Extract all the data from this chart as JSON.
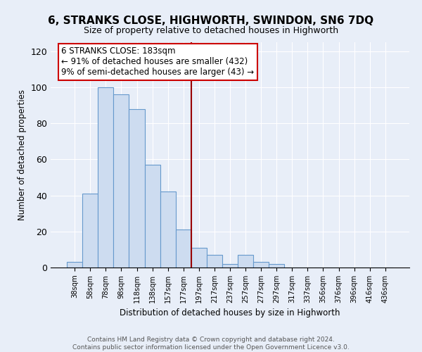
{
  "title": "6, STRANKS CLOSE, HIGHWORTH, SWINDON, SN6 7DQ",
  "subtitle": "Size of property relative to detached houses in Highworth",
  "xlabel": "Distribution of detached houses by size in Highworth",
  "ylabel": "Number of detached properties",
  "bar_labels": [
    "38sqm",
    "58sqm",
    "78sqm",
    "98sqm",
    "118sqm",
    "138sqm",
    "157sqm",
    "177sqm",
    "197sqm",
    "217sqm",
    "237sqm",
    "257sqm",
    "277sqm",
    "297sqm",
    "317sqm",
    "337sqm",
    "356sqm",
    "376sqm",
    "396sqm",
    "416sqm",
    "436sqm"
  ],
  "bar_values": [
    3,
    41,
    100,
    96,
    88,
    57,
    42,
    21,
    11,
    7,
    2,
    7,
    3,
    2,
    0,
    0,
    0,
    0,
    0,
    0,
    0
  ],
  "bar_color": "#cddcf0",
  "bar_edge_color": "#6699cc",
  "vline_color": "#990000",
  "vline_x_index": 7.5,
  "annotation_line1": "6 STRANKS CLOSE: 183sqm",
  "annotation_line2": "← 91% of detached houses are smaller (432)",
  "annotation_line3": "9% of semi-detached houses are larger (43) →",
  "ylim": [
    0,
    125
  ],
  "yticks": [
    0,
    20,
    40,
    60,
    80,
    100,
    120
  ],
  "footer_text": "Contains HM Land Registry data © Crown copyright and database right 2024.\nContains public sector information licensed under the Open Government Licence v3.0.",
  "background_color": "#e8eef8",
  "grid_color": "#ffffff"
}
